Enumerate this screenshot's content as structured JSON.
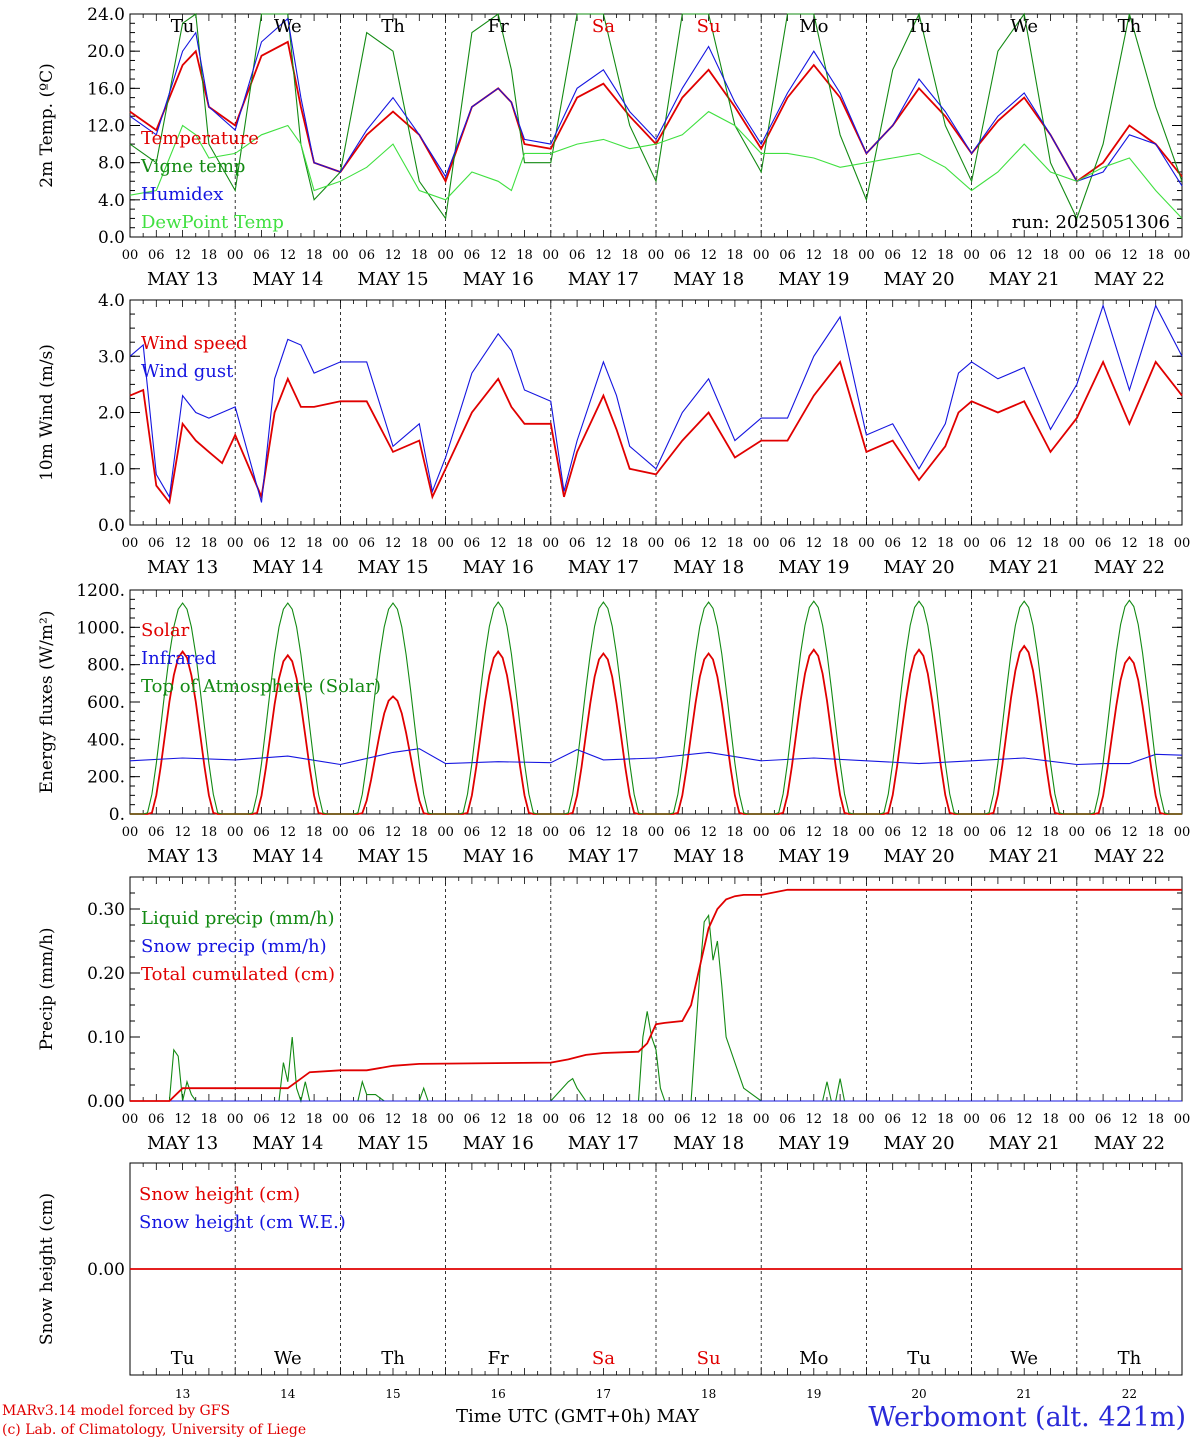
{
  "footer": {
    "credit_line1": "MARv3.14 model forced by GFS",
    "credit_line2": "(c) Lab. of Climatology, University of Liege",
    "x_caption": "Time UTC (GMT+0h) MAY",
    "station": "Werbomont (alt. 421m)"
  },
  "colors": {
    "red": "#e00000",
    "blue": "#1515e0",
    "darkgreen": "#138a13",
    "lightgreen": "#40e040",
    "black": "#000000"
  },
  "chart_data": [
    {
      "type": "line",
      "ylabel_html": "2m Temp. (ºC)",
      "ylim": [
        0,
        24
      ],
      "yticks": [
        "0.0",
        "4.0",
        "8.0",
        "12.0",
        "16.0",
        "20.0",
        "24.0"
      ],
      "run_label": "run: 2025051306",
      "day_names": [
        "Tu",
        "We",
        "Th",
        "Fr",
        "Sa",
        "Su",
        "Mo",
        "Tu",
        "We",
        "Th"
      ],
      "series": [
        {
          "name": "Temperature",
          "color": "red",
          "x_hours": [
            0,
            6,
            12,
            15,
            18,
            24,
            30,
            36,
            39,
            42,
            48,
            54,
            60,
            66,
            72,
            78,
            84,
            87,
            90,
            96,
            102,
            108,
            114,
            120,
            126,
            132,
            138,
            144,
            150,
            156,
            162,
            168,
            174,
            180,
            186,
            192,
            198,
            204,
            210,
            216,
            222,
            228,
            234,
            240
          ],
          "values": [
            13.5,
            11.5,
            18.5,
            20,
            14,
            12,
            19.5,
            21,
            14,
            8,
            7,
            11,
            13.5,
            11,
            6,
            14,
            16,
            14.5,
            10,
            9.5,
            15,
            16.5,
            13,
            10,
            15,
            18,
            14,
            9.5,
            15,
            18.5,
            15,
            9,
            12,
            16,
            13,
            9,
            12.5,
            15,
            11,
            6,
            8,
            12,
            10,
            6.5
          ]
        },
        {
          "name": "Vigne temp",
          "color": "darkgreen",
          "x_hours": [
            0,
            6,
            12,
            15,
            18,
            24,
            30,
            36,
            39,
            42,
            48,
            54,
            60,
            66,
            72,
            78,
            84,
            87,
            90,
            96,
            102,
            108,
            114,
            120,
            126,
            132,
            138,
            144,
            150,
            156,
            162,
            168,
            174,
            180,
            186,
            192,
            198,
            204,
            210,
            216,
            222,
            228,
            234,
            240
          ],
          "values": [
            10,
            8,
            23,
            24,
            10,
            5,
            24,
            24,
            10,
            4,
            7,
            22,
            20,
            6,
            2,
            22,
            24,
            18,
            8,
            8,
            24,
            24,
            12,
            6,
            24,
            24,
            12,
            7,
            24,
            24,
            11,
            4,
            18,
            24,
            12,
            6,
            20,
            24,
            8,
            2,
            10,
            24,
            14,
            6
          ]
        },
        {
          "name": "Humidex",
          "color": "blue",
          "x_hours": [
            0,
            6,
            12,
            15,
            18,
            24,
            30,
            36,
            39,
            42,
            48,
            54,
            60,
            66,
            72,
            78,
            84,
            87,
            90,
            96,
            102,
            108,
            114,
            120,
            126,
            132,
            138,
            144,
            150,
            156,
            162,
            168,
            174,
            180,
            186,
            192,
            198,
            204,
            210,
            216,
            222,
            228,
            234,
            240
          ],
          "values": [
            13,
            11,
            20,
            22,
            14,
            11.5,
            21,
            23.5,
            15,
            8,
            7,
            11.5,
            15,
            11,
            6.5,
            14,
            16,
            14.5,
            10.5,
            10,
            16,
            18,
            13.5,
            10.5,
            16,
            20.5,
            14.5,
            10,
            15.5,
            20,
            15.5,
            9,
            12,
            17,
            13.5,
            9,
            13,
            15.5,
            11,
            6,
            7,
            11,
            10,
            5.5
          ]
        },
        {
          "name": "DewPoint Temp",
          "color": "lightgreen",
          "x_hours": [
            0,
            6,
            12,
            15,
            18,
            24,
            30,
            36,
            39,
            42,
            48,
            54,
            60,
            66,
            72,
            78,
            84,
            87,
            90,
            96,
            102,
            108,
            114,
            120,
            126,
            132,
            138,
            144,
            150,
            156,
            162,
            168,
            174,
            180,
            186,
            192,
            198,
            204,
            210,
            216,
            222,
            228,
            234,
            240
          ],
          "values": [
            4.5,
            5,
            12,
            11,
            8.5,
            9,
            11,
            12,
            10,
            5,
            6,
            7.5,
            10,
            5,
            4,
            7,
            6,
            5,
            9,
            9,
            10,
            10.5,
            9.5,
            10,
            11,
            13.5,
            12,
            9,
            9,
            8.5,
            7.5,
            8,
            8.5,
            9,
            7.5,
            5,
            7,
            10,
            7,
            6,
            7.5,
            8.5,
            5,
            2
          ]
        }
      ]
    },
    {
      "type": "line",
      "ylabel_html": "10m Wind (m/s)",
      "ylim": [
        0,
        4
      ],
      "yticks": [
        "0.0",
        "1.0",
        "2.0",
        "3.0",
        "4.0"
      ],
      "series": [
        {
          "name": "Wind speed",
          "color": "red",
          "x_hours": [
            0,
            3,
            6,
            9,
            12,
            15,
            18,
            21,
            24,
            30,
            33,
            36,
            39,
            42,
            48,
            54,
            60,
            66,
            69,
            72,
            78,
            84,
            87,
            90,
            96,
            99,
            102,
            108,
            111,
            114,
            120,
            126,
            132,
            138,
            144,
            150,
            156,
            162,
            168,
            174,
            180,
            186,
            189,
            192,
            198,
            204,
            210,
            216,
            222,
            228,
            234,
            240
          ],
          "values": [
            2.3,
            2.4,
            0.7,
            0.4,
            1.8,
            1.5,
            1.3,
            1.1,
            1.6,
            0.5,
            2.0,
            2.6,
            2.1,
            2.1,
            2.2,
            2.2,
            1.3,
            1.5,
            0.5,
            1.0,
            2.0,
            2.6,
            2.1,
            1.8,
            1.8,
            0.5,
            1.3,
            2.3,
            1.7,
            1.0,
            0.9,
            1.5,
            2.0,
            1.2,
            1.5,
            1.5,
            2.3,
            2.9,
            1.3,
            1.5,
            0.8,
            1.4,
            2.0,
            2.2,
            2.0,
            2.2,
            1.3,
            1.9,
            2.9,
            1.8,
            2.9,
            2.3
          ]
        },
        {
          "name": "Wind gust",
          "color": "blue",
          "x_hours": [
            0,
            3,
            6,
            9,
            12,
            15,
            18,
            21,
            24,
            30,
            33,
            36,
            39,
            42,
            48,
            54,
            60,
            66,
            69,
            72,
            78,
            84,
            87,
            90,
            96,
            99,
            102,
            108,
            111,
            114,
            120,
            126,
            132,
            138,
            144,
            150,
            156,
            162,
            168,
            174,
            180,
            186,
            189,
            192,
            198,
            204,
            210,
            216,
            222,
            228,
            234,
            240
          ],
          "values": [
            3.0,
            3.2,
            0.9,
            0.5,
            2.3,
            2.0,
            1.9,
            2.0,
            2.1,
            0.4,
            2.6,
            3.3,
            3.2,
            2.7,
            2.9,
            2.9,
            1.4,
            1.8,
            0.6,
            1.2,
            2.7,
            3.4,
            3.1,
            2.4,
            2.2,
            0.6,
            1.5,
            2.9,
            2.3,
            1.4,
            1.0,
            2.0,
            2.6,
            1.5,
            1.9,
            1.9,
            3.0,
            3.7,
            1.6,
            1.8,
            1.0,
            1.8,
            2.7,
            2.9,
            2.6,
            2.8,
            1.7,
            2.5,
            3.9,
            2.4,
            3.9,
            3.0
          ]
        }
      ]
    },
    {
      "type": "line",
      "ylabel_html": "Energy fluxes (W/m²)",
      "ylim": [
        0,
        1200
      ],
      "yticks": [
        "0.",
        "200.",
        "400.",
        "600.",
        "800.",
        "1000.",
        "1200."
      ],
      "series": [
        {
          "name": "Solar",
          "color": "red",
          "day_peaks": [
            870,
            850,
            630,
            870,
            860,
            860,
            880,
            880,
            900,
            840
          ]
        },
        {
          "name": "Infrared",
          "color": "blue",
          "x_hours": [
            0,
            12,
            24,
            36,
            48,
            60,
            66,
            72,
            84,
            96,
            102,
            108,
            120,
            132,
            144,
            156,
            168,
            180,
            192,
            204,
            216,
            222,
            228,
            234,
            240
          ],
          "values": [
            285,
            300,
            290,
            310,
            265,
            330,
            350,
            270,
            280,
            275,
            345,
            290,
            300,
            330,
            285,
            300,
            285,
            270,
            285,
            300,
            265,
            270,
            270,
            320,
            315
          ]
        },
        {
          "name": "Top of Atmosphere (Solar)",
          "color": "darkgreen",
          "day_peaks": [
            1130,
            1130,
            1130,
            1135,
            1135,
            1135,
            1140,
            1140,
            1140,
            1145
          ]
        }
      ]
    },
    {
      "type": "line",
      "ylabel_html": "Precip (mm/h)",
      "ylim": [
        0,
        0.35
      ],
      "yticks": [
        "0.00",
        "0.10",
        "0.20",
        "0.30"
      ],
      "series": [
        {
          "name": "Liquid precip (mm/h)",
          "color": "darkgreen",
          "x_hours": [
            0,
            9,
            10,
            11,
            12,
            13,
            14,
            15,
            16,
            24,
            34,
            35,
            36,
            37,
            38,
            39,
            40,
            41,
            48,
            52,
            53,
            54,
            56,
            58,
            60,
            66,
            67,
            68,
            96,
            100,
            101,
            102,
            103,
            104,
            108,
            116,
            117,
            118,
            119,
            120,
            121,
            122,
            123,
            124,
            128,
            130,
            131,
            132,
            133,
            134,
            135,
            136,
            140,
            142,
            144,
            158,
            159,
            160,
            161,
            162,
            163,
            164,
            240
          ],
          "values": [
            0,
            0,
            0.08,
            0.07,
            0,
            0.03,
            0.01,
            0,
            0,
            0,
            0,
            0.06,
            0.03,
            0.1,
            0.02,
            0,
            0.03,
            0,
            0,
            0,
            0.03,
            0.01,
            0.01,
            0,
            0,
            0,
            0.02,
            0,
            0,
            0.03,
            0.035,
            0.02,
            0.01,
            0,
            0,
            0,
            0.1,
            0.14,
            0.1,
            0.08,
            0.02,
            0,
            0,
            0,
            0,
            0.2,
            0.28,
            0.29,
            0.22,
            0.25,
            0.18,
            0.1,
            0.02,
            0.01,
            0,
            0,
            0.03,
            0,
            0,
            0.035,
            0,
            0,
            0
          ]
        },
        {
          "name": "Snow precip (mm/h)",
          "color": "blue",
          "x_hours": [
            0,
            240
          ],
          "values": [
            0,
            0
          ]
        },
        {
          "name": "Total cumulated (cm)",
          "color": "red",
          "x_hours": [
            0,
            9,
            12,
            24,
            36,
            38,
            41,
            48,
            54,
            60,
            66,
            96,
            100,
            104,
            108,
            116,
            118,
            120,
            122,
            126,
            128,
            130,
            132,
            134,
            136,
            138,
            140,
            142,
            144,
            150,
            240
          ],
          "values": [
            0,
            0,
            0.02,
            0.02,
            0.02,
            0.03,
            0.045,
            0.048,
            0.048,
            0.055,
            0.058,
            0.06,
            0.065,
            0.072,
            0.075,
            0.077,
            0.09,
            0.12,
            0.122,
            0.125,
            0.15,
            0.21,
            0.27,
            0.3,
            0.315,
            0.32,
            0.322,
            0.322,
            0.322,
            0.33,
            0.33
          ]
        }
      ]
    },
    {
      "type": "line",
      "ylabel_html": "Snow height (cm)",
      "yticks": [
        "0.00"
      ],
      "day_names": [
        "Tu",
        "We",
        "Th",
        "Fr",
        "Sa",
        "Su",
        "Mo",
        "Tu",
        "We",
        "Th"
      ],
      "day_numbers": [
        "13",
        "14",
        "15",
        "16",
        "17",
        "18",
        "19",
        "20",
        "21",
        "22"
      ],
      "series": [
        {
          "name": "Snow height (cm)",
          "color": "red",
          "x_hours": [
            0,
            240
          ],
          "values": [
            0,
            0
          ]
        },
        {
          "name": "Snow height (cm W.E.)",
          "color": "blue",
          "x_hours": [],
          "values": []
        }
      ]
    }
  ],
  "x_axis": {
    "hour_labels": [
      "00",
      "06",
      "12",
      "18"
    ],
    "final_hour_label": "00",
    "dates": [
      "MAY 13",
      "MAY 14",
      "MAY 15",
      "MAY 16",
      "MAY 17",
      "MAY 18",
      "MAY 19",
      "MAY 20",
      "MAY 21",
      "MAY 22"
    ],
    "weekend_days": [
      "Sa",
      "Su"
    ]
  }
}
